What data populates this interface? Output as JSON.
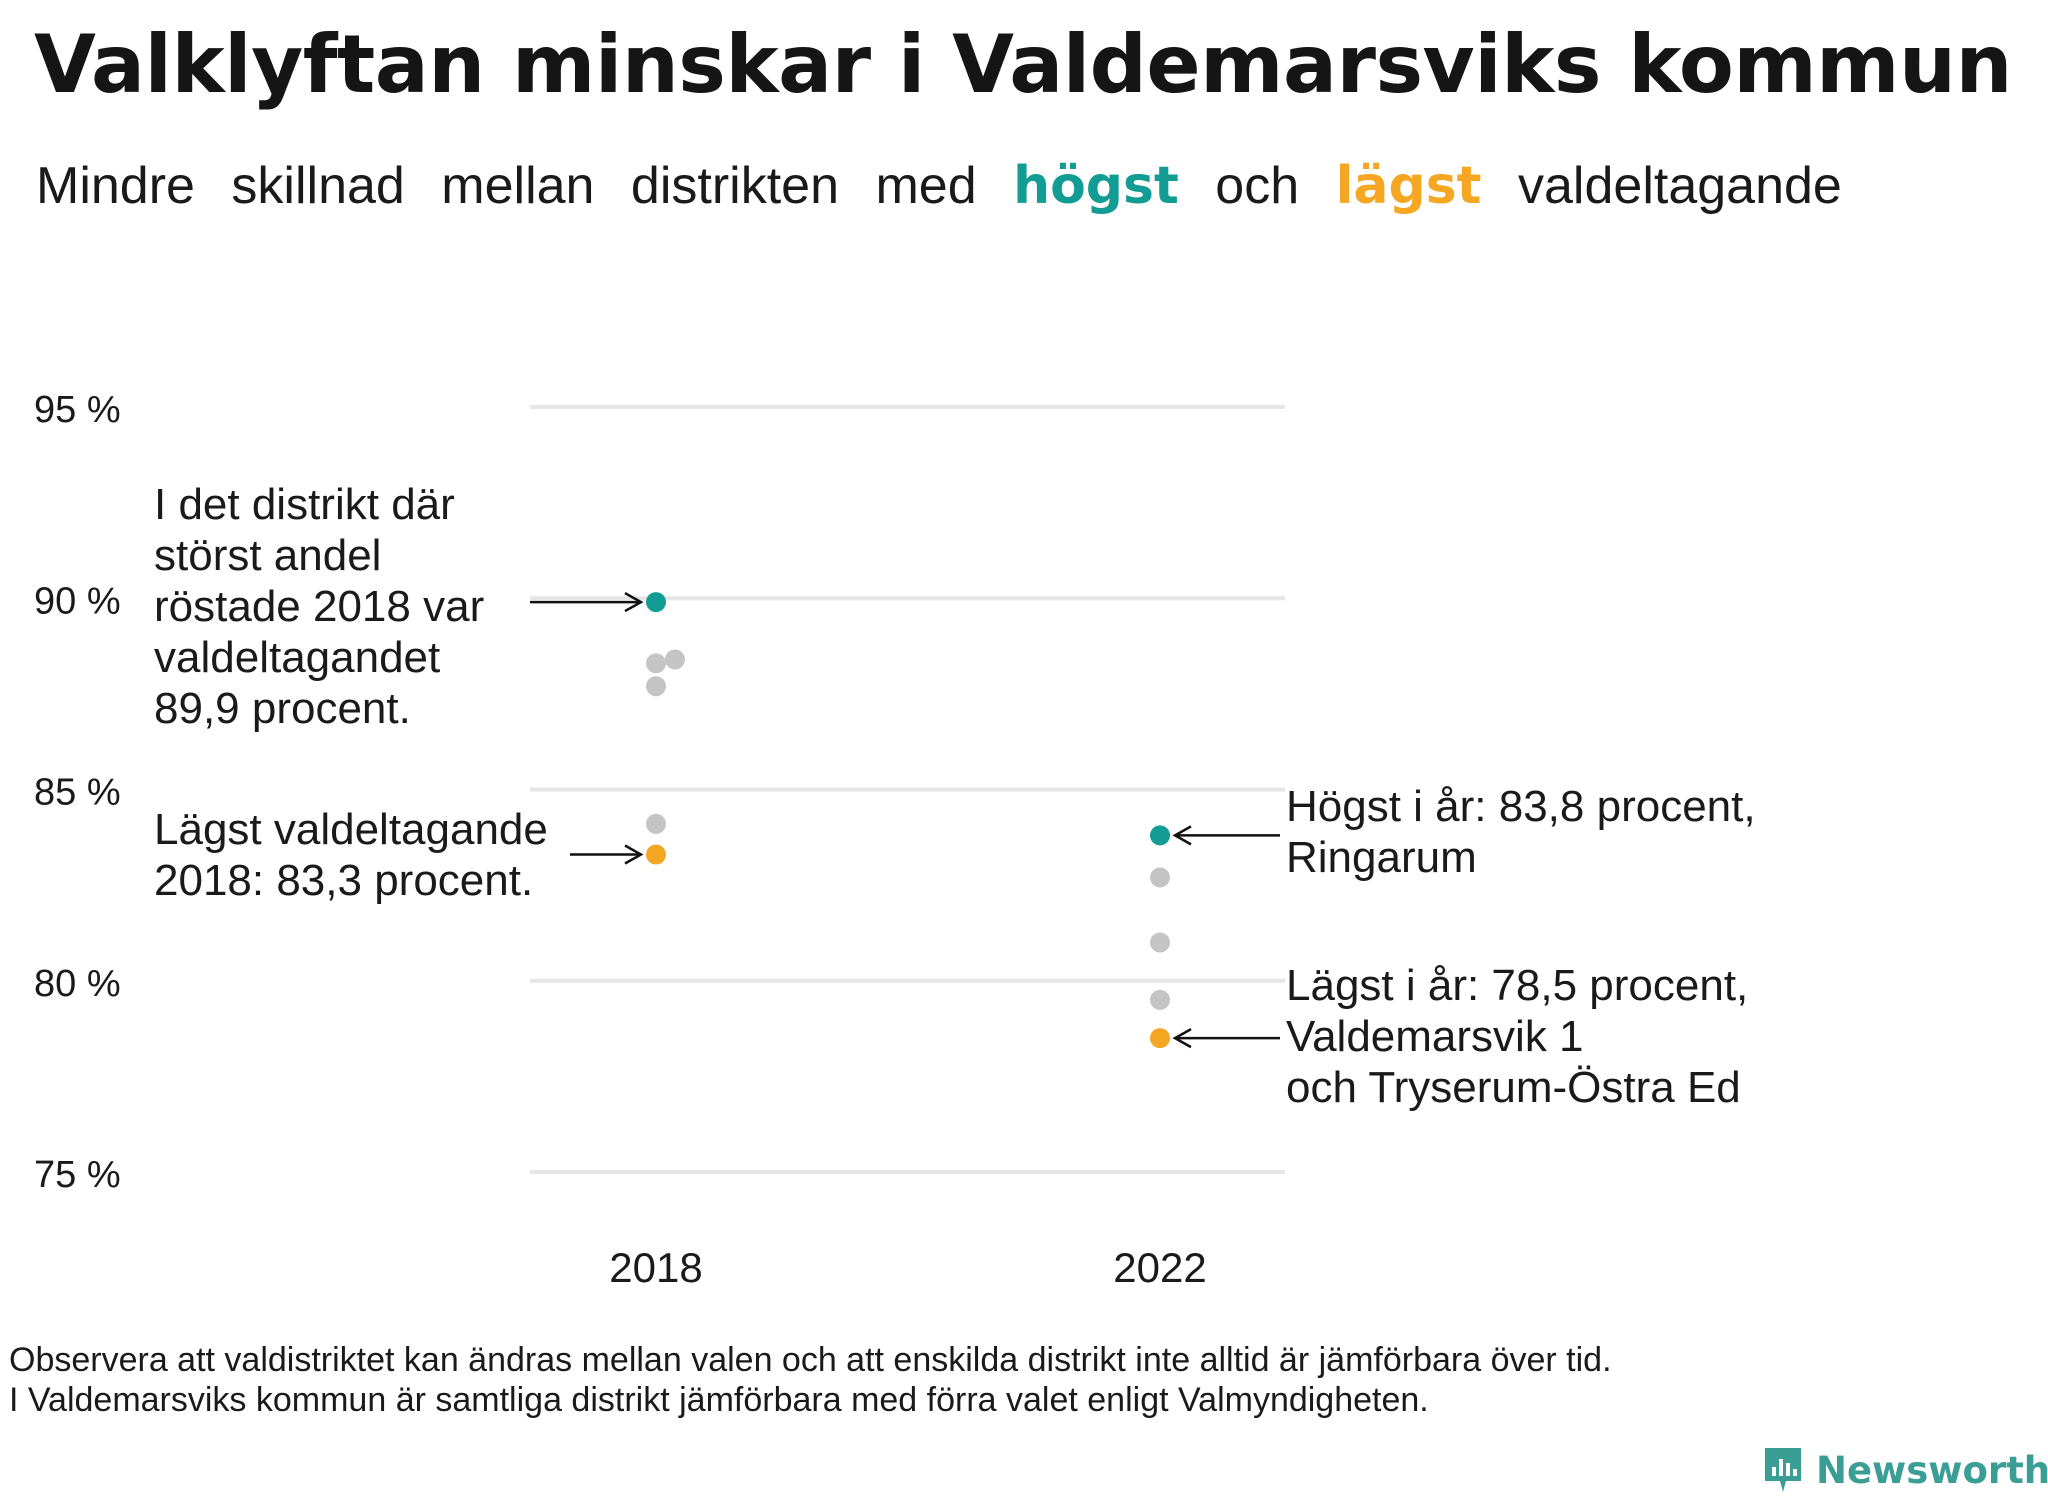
{
  "title": "Valklyftan minskar i Valdemarsviks kommun",
  "subtitle": {
    "words_before": [
      "Mindre",
      "skillnad",
      "mellan",
      "distrikten",
      "med"
    ],
    "high_word": "högst",
    "middle_word": "och",
    "low_word": "lägst",
    "words_after": [
      "valdeltagande"
    ]
  },
  "colors": {
    "high": "#139c93",
    "low": "#f5a623",
    "other": "#c4c4c4",
    "grid": "#e6e6e6",
    "text": "#1a1a1a",
    "brand": "#3a9e95"
  },
  "chart_data": {
    "type": "scatter",
    "title": "Valklyftan minskar i Valdemarsviks kommun",
    "xlabel": "",
    "ylabel": "",
    "categories": [
      "2018",
      "2022"
    ],
    "ylim": [
      75,
      95
    ],
    "y_ticks": [
      95,
      90,
      85,
      80,
      75
    ],
    "y_tick_labels": [
      "95 %",
      "90 %",
      "85 %",
      "80 %",
      "75 %"
    ],
    "grid": true,
    "points": [
      {
        "category": "2018",
        "value": 89.9,
        "role": "high"
      },
      {
        "category": "2018",
        "value": 88.3,
        "role": "other",
        "offset": 0
      },
      {
        "category": "2018",
        "value": 88.4,
        "role": "other",
        "offset": 1
      },
      {
        "category": "2018",
        "value": 87.7,
        "role": "other",
        "offset": 0
      },
      {
        "category": "2018",
        "value": 84.1,
        "role": "other",
        "offset": 0
      },
      {
        "category": "2018",
        "value": 83.3,
        "role": "low"
      },
      {
        "category": "2022",
        "value": 83.8,
        "role": "high"
      },
      {
        "category": "2022",
        "value": 82.7,
        "role": "other",
        "offset": 0
      },
      {
        "category": "2022",
        "value": 81.0,
        "role": "other",
        "offset": 0
      },
      {
        "category": "2022",
        "value": 79.5,
        "role": "other",
        "offset": 0
      },
      {
        "category": "2022",
        "value": 78.5,
        "role": "low"
      }
    ],
    "annotations": [
      {
        "id": "high-2018",
        "lines": [
          "I det distrikt där",
          "störst andel",
          "röstade 2018 var",
          "valdeltagandet",
          "89,9 procent."
        ],
        "target": "2018",
        "value": 89.9,
        "side": "left"
      },
      {
        "id": "low-2018",
        "lines": [
          "Lägst valdeltagande",
          "2018: 83,3 procent."
        ],
        "target": "2018",
        "value": 83.3,
        "side": "left"
      },
      {
        "id": "high-2022",
        "lines": [
          "Högst i år: 83,8 procent,",
          "Ringarum"
        ],
        "target": "2022",
        "value": 83.8,
        "side": "right"
      },
      {
        "id": "low-2022",
        "lines": [
          "Lägst i år: 78,5 procent,",
          "Valdemarsvik 1",
          "och Tryserum-Östra Ed"
        ],
        "target": "2022",
        "value": 78.5,
        "side": "right"
      }
    ]
  },
  "footnote": {
    "line1": "Observera att valdistriktet kan ändras mellan valen och att enskilda distrikt inte alltid är jämförbara över tid.",
    "line2": "I Valdemarsviks kommun är samtliga distrikt jämförbara med förra valet enligt Valmyndigheten."
  },
  "brand": {
    "name": "Newsworthy",
    "logo_icon": "newsworthy-chart-icon"
  }
}
